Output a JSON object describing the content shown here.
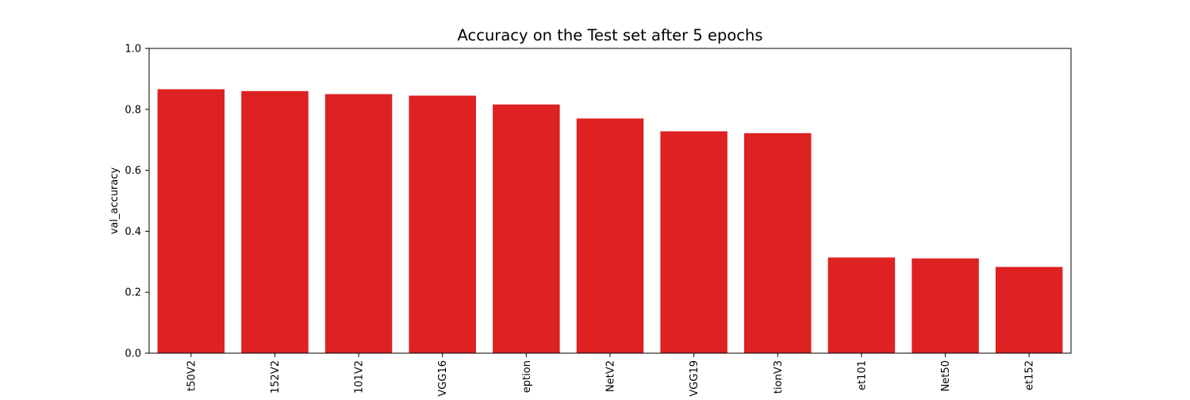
{
  "chart_data": {
    "type": "bar",
    "title": "Accuracy on the Test set after 5 epochs",
    "xlabel": "",
    "ylabel": "val_accuracy",
    "categories": [
      "t50V2",
      "152V2",
      "101V2",
      "VGG16",
      "eption",
      "NetV2",
      "VGG19",
      "tionV3",
      "et101",
      "Net50",
      "et152"
    ],
    "values": [
      0.866,
      0.86,
      0.85,
      0.845,
      0.816,
      0.77,
      0.728,
      0.722,
      0.314,
      0.311,
      0.283
    ],
    "ylim": [
      0,
      1.0
    ],
    "yticks": [
      0.0,
      0.2,
      0.4,
      0.6,
      0.8,
      1.0
    ],
    "ytick_labels": [
      "0.0",
      "0.2",
      "0.4",
      "0.6",
      "0.8",
      "1.0"
    ],
    "grid": false,
    "bar_color": "#de2121"
  }
}
